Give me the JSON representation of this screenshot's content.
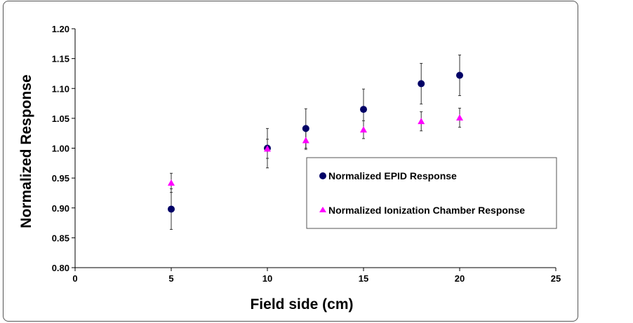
{
  "chart_data": {
    "type": "scatter",
    "title": "",
    "xlabel": "Field side (cm)",
    "ylabel": "Normalized Response",
    "xlim": [
      0,
      25
    ],
    "ylim": [
      0.8,
      1.2
    ],
    "xticks": [
      "0",
      "5",
      "10",
      "15",
      "20",
      "25"
    ],
    "yticks": [
      "0.80",
      "0.85",
      "0.90",
      "0.95",
      "1.00",
      "1.05",
      "1.10",
      "1.15",
      "1.20"
    ],
    "grid": false,
    "legend_position": "center-right",
    "series": [
      {
        "name": "Normalized EPID Response",
        "marker": "circle",
        "color": "#000066",
        "x": [
          5,
          10,
          12,
          15,
          18,
          20
        ],
        "y": [
          0.898,
          1.0,
          1.033,
          1.065,
          1.108,
          1.122
        ],
        "yerr": [
          0.034,
          0.033,
          0.033,
          0.034,
          0.034,
          0.034
        ]
      },
      {
        "name": "Normalized Ionization Chamber Response",
        "marker": "triangle",
        "color": "#ff00ff",
        "x": [
          5,
          10,
          12,
          15,
          18,
          20
        ],
        "y": [
          0.942,
          0.999,
          1.013,
          1.031,
          1.045,
          1.051
        ],
        "yerr": [
          0.016,
          0.016,
          0.015,
          0.015,
          0.016,
          0.016
        ]
      }
    ]
  }
}
